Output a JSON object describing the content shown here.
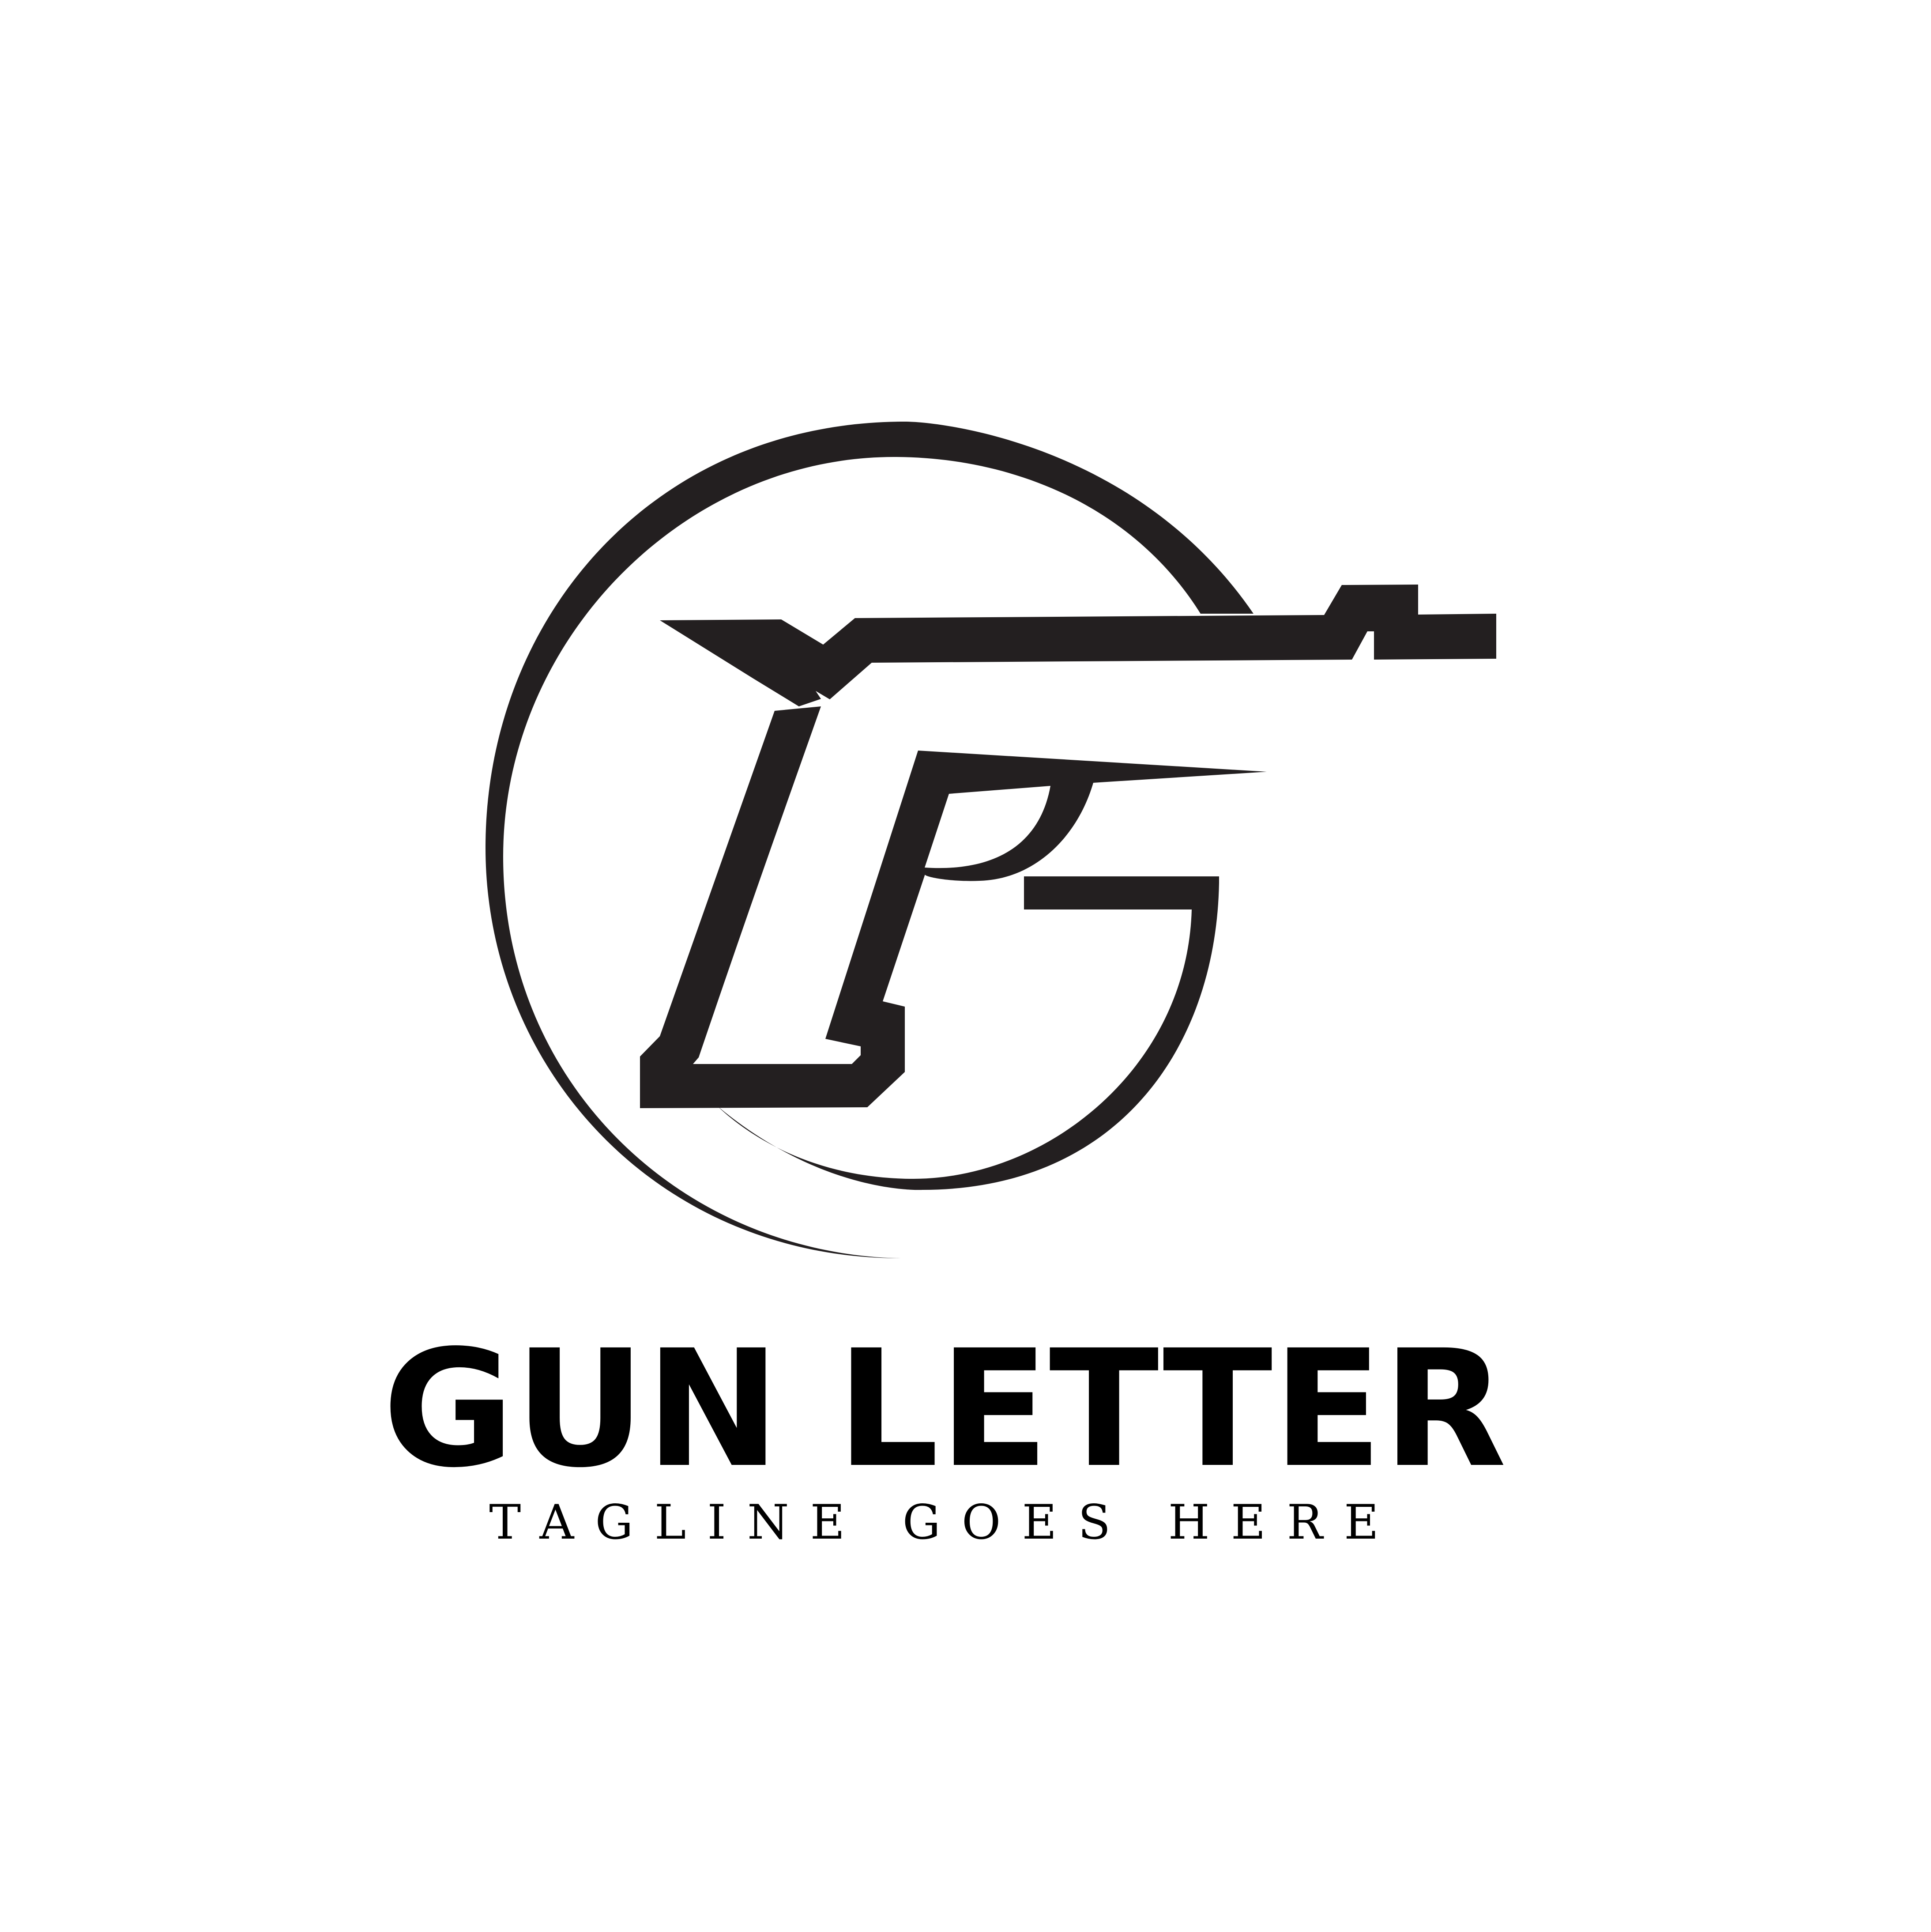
{
  "brand": {
    "name": "GUN LETTER",
    "tagline": "TAGLINE GOES HERE"
  },
  "logo": {
    "icon": "gun-letter-g-icon"
  },
  "colors": {
    "background": "#ffffff",
    "mark": "#231f20",
    "text": "#000000"
  }
}
